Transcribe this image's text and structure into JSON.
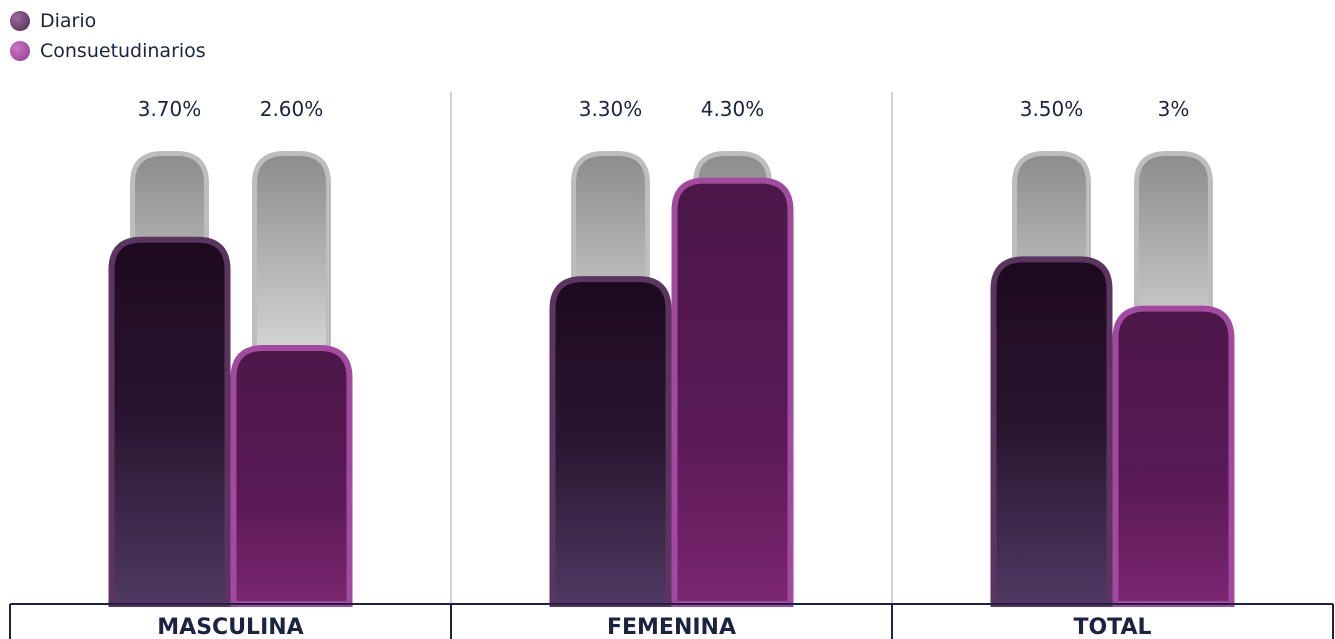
{
  "chart_data": {
    "type": "bar",
    "categories": [
      "MASCULINA",
      "FEMENINA",
      "TOTAL"
    ],
    "series": [
      {
        "name": "Diario",
        "values": [
          3.7,
          3.3,
          3.5
        ],
        "labels": [
          "3.70%",
          "3.30%",
          "3.50%"
        ],
        "color": "#6b3a6e"
      },
      {
        "name": "Consuetudinarios",
        "values": [
          2.6,
          4.3,
          3.0
        ],
        "labels": [
          "2.60%",
          "4.30%",
          "3%"
        ],
        "color": "#a14aa0"
      }
    ],
    "ylim": [
      0,
      5.2
    ],
    "title": "",
    "xlabel": "",
    "ylabel": "",
    "legend_position": "top-left"
  }
}
